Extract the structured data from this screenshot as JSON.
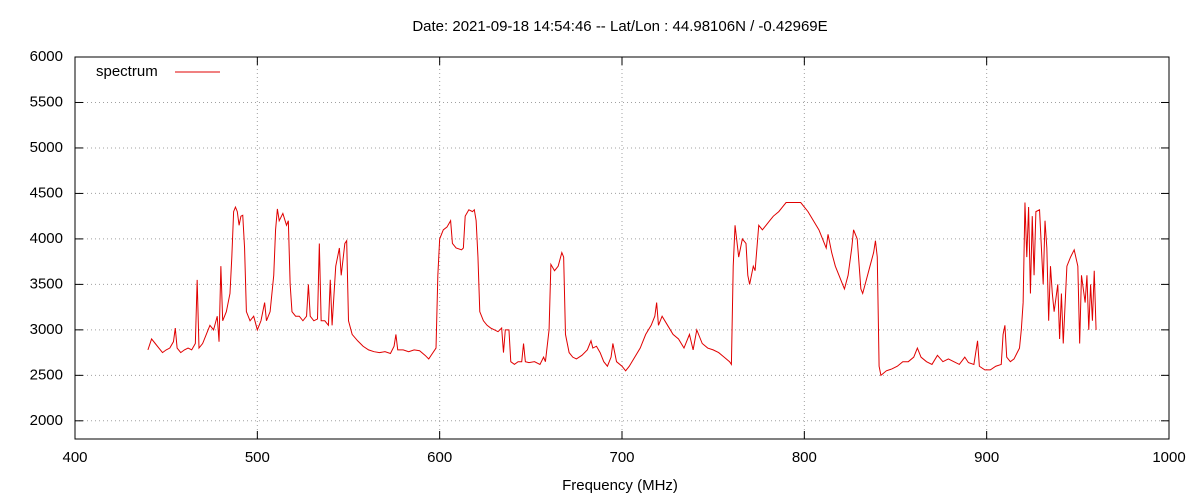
{
  "chart_data": {
    "type": "line",
    "title": "Date: 2021-09-18 14:54:46  --  Lat/Lon : 44.98106N / -0.42969E",
    "x_label": "Frequency (MHz)",
    "x": [
      440,
      442,
      444,
      446,
      448,
      450,
      452,
      454,
      455,
      456,
      458,
      460,
      462,
      464,
      466,
      467,
      468,
      470,
      472,
      474,
      476,
      478,
      479,
      480,
      481,
      483,
      485,
      486,
      487,
      488,
      489,
      490,
      491,
      492,
      493,
      494,
      496,
      498,
      500,
      502,
      504,
      505,
      507,
      509,
      510,
      511,
      512,
      514,
      516,
      517,
      518,
      519,
      521,
      523,
      525,
      527,
      528,
      529,
      531,
      533,
      534,
      535,
      537,
      539,
      540,
      541,
      543,
      545,
      546,
      548,
      549,
      550,
      552,
      555,
      558,
      561,
      564,
      567,
      570,
      573,
      575,
      576,
      577,
      580,
      583,
      586,
      589,
      592,
      594,
      596,
      598,
      599,
      600,
      602,
      604,
      606,
      607,
      609,
      612,
      613,
      614,
      616,
      618,
      619,
      620,
      621,
      622,
      624,
      626,
      628,
      630,
      632,
      634,
      635,
      636,
      638,
      639,
      641,
      643,
      645,
      646,
      647,
      649,
      652,
      655,
      657,
      658,
      660,
      661,
      663,
      665,
      667,
      668,
      669,
      671,
      673,
      675,
      678,
      681,
      683,
      684,
      686,
      688,
      690,
      692,
      694,
      695,
      697,
      700,
      702,
      704,
      707,
      710,
      713,
      716,
      718,
      719,
      720,
      722,
      725,
      728,
      731,
      734,
      737,
      739,
      741,
      744,
      747,
      750,
      753,
      756,
      759,
      760,
      761,
      762,
      764,
      766,
      768,
      769,
      770,
      772,
      773,
      775,
      777,
      779,
      781,
      783,
      786,
      788,
      790,
      795,
      798,
      800,
      802,
      805,
      808,
      810,
      812,
      813,
      815,
      817,
      819,
      821,
      822,
      824,
      826,
      827,
      829,
      831,
      832,
      834,
      836,
      838,
      839,
      840,
      841,
      842,
      845,
      848,
      851,
      854,
      857,
      860,
      862,
      864,
      867,
      870,
      873,
      876,
      879,
      882,
      885,
      888,
      890,
      893,
      895,
      896,
      899,
      902,
      905,
      908,
      909,
      910,
      911,
      913,
      915,
      918,
      919,
      920,
      921,
      922,
      923,
      924,
      925,
      926,
      927,
      929,
      931,
      932,
      933,
      934,
      935,
      936,
      937,
      939,
      940,
      941,
      942,
      944,
      946,
      948,
      950,
      951,
      952,
      954,
      955,
      956,
      957,
      958,
      959,
      960
    ],
    "series": [
      {
        "name": "spectrum",
        "color": "#e00000",
        "values": [
          2780,
          2900,
          2850,
          2800,
          2750,
          2780,
          2800,
          2870,
          3020,
          2800,
          2750,
          2780,
          2800,
          2780,
          2850,
          3550,
          2800,
          2850,
          2950,
          3050,
          3000,
          3150,
          2870,
          3700,
          3100,
          3200,
          3400,
          3800,
          4300,
          4350,
          4300,
          4150,
          4250,
          4260,
          3900,
          3200,
          3100,
          3150,
          3000,
          3100,
          3300,
          3100,
          3200,
          3600,
          4100,
          4330,
          4200,
          4280,
          4150,
          4200,
          3500,
          3200,
          3150,
          3150,
          3100,
          3150,
          3500,
          3150,
          3100,
          3120,
          3950,
          3100,
          3100,
          3050,
          3550,
          3050,
          3700,
          3900,
          3600,
          3950,
          3980,
          3100,
          2950,
          2880,
          2820,
          2780,
          2760,
          2750,
          2760,
          2740,
          2820,
          2950,
          2780,
          2780,
          2760,
          2780,
          2770,
          2720,
          2680,
          2740,
          2800,
          3600,
          4000,
          4100,
          4130,
          4200,
          3950,
          3900,
          3880,
          3900,
          4250,
          4320,
          4300,
          4320,
          4200,
          3800,
          3200,
          3100,
          3050,
          3020,
          3000,
          2980,
          3020,
          2750,
          3000,
          3000,
          2650,
          2620,
          2650,
          2650,
          2850,
          2650,
          2640,
          2650,
          2620,
          2700,
          2650,
          3000,
          3720,
          3650,
          3700,
          3850,
          3800,
          2950,
          2750,
          2700,
          2680,
          2720,
          2780,
          2880,
          2800,
          2820,
          2750,
          2650,
          2600,
          2700,
          2850,
          2650,
          2600,
          2550,
          2600,
          2700,
          2800,
          2950,
          3050,
          3150,
          3300,
          3050,
          3150,
          3050,
          2950,
          2900,
          2800,
          2950,
          2780,
          3000,
          2850,
          2800,
          2780,
          2750,
          2700,
          2650,
          2620,
          3700,
          4150,
          3800,
          4000,
          3950,
          3600,
          3500,
          3700,
          3650,
          4150,
          4100,
          4150,
          4200,
          4250,
          4300,
          4350,
          4400,
          4400,
          4400,
          4350,
          4300,
          4200,
          4100,
          4000,
          3900,
          4050,
          3850,
          3700,
          3600,
          3500,
          3450,
          3600,
          3900,
          4100,
          4000,
          3450,
          3400,
          3550,
          3700,
          3850,
          3980,
          3800,
          2600,
          2500,
          2550,
          2570,
          2600,
          2650,
          2650,
          2700,
          2800,
          2700,
          2650,
          2620,
          2720,
          2650,
          2680,
          2650,
          2620,
          2700,
          2640,
          2620,
          2880,
          2600,
          2560,
          2560,
          2600,
          2620,
          2950,
          3050,
          2700,
          2650,
          2680,
          2800,
          3000,
          3300,
          4400,
          3800,
          4350,
          3400,
          4250,
          3600,
          4300,
          4320,
          3500,
          4200,
          3900,
          3100,
          3700,
          3400,
          3200,
          3500,
          2900,
          3400,
          2850,
          3700,
          3800,
          3880,
          3700,
          2850,
          3600,
          3300,
          3600,
          3000,
          3500,
          3100,
          3650,
          3000
        ]
      }
    ],
    "xlim": [
      400,
      1000
    ],
    "xticks": [
      400,
      500,
      600,
      700,
      800,
      900,
      1000
    ],
    "ylim": [
      1800,
      6000
    ],
    "yticks": [
      2000,
      2500,
      3000,
      3500,
      4000,
      4500,
      5000,
      5500,
      6000
    ],
    "grid": true,
    "legend": "top-left"
  }
}
